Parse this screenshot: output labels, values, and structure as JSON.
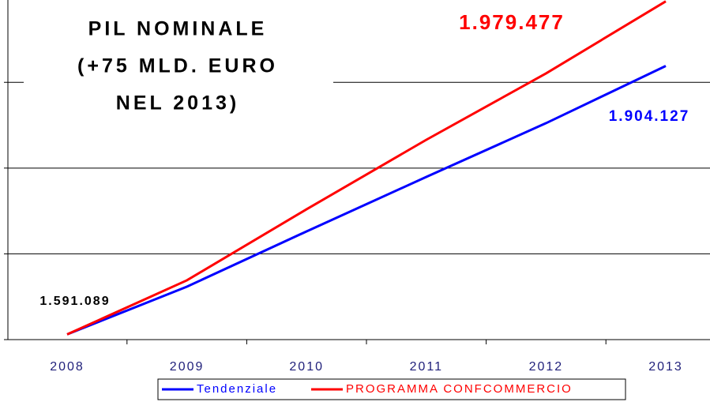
{
  "chart_data": {
    "type": "line",
    "title_lines": [
      "PIL NOMINALE",
      "(+75 MLD. EURO",
      "NEL 2013)"
    ],
    "categories": [
      "2008",
      "2009",
      "2010",
      "2011",
      "2012",
      "2013"
    ],
    "series": [
      {
        "name": "Tendenziale",
        "color": "#0000ff",
        "values": [
          1591089,
          1646700,
          1711200,
          1774700,
          1837400,
          1904127
        ],
        "value_labels": [
          "1.591.089",
          null,
          null,
          null,
          null,
          "1.904.127"
        ],
        "value_label_colors": [
          "#000000",
          null,
          null,
          null,
          null,
          "#0000ff"
        ]
      },
      {
        "name": "PROGRAMMA CONFCOMMERCIO",
        "color": "#ff0000",
        "values": [
          1591089,
          1654100,
          1737000,
          1818000,
          1895400,
          1979477
        ],
        "value_labels": [
          null,
          null,
          null,
          null,
          null,
          "1.979.477"
        ],
        "value_label_colors": [
          null,
          null,
          null,
          null,
          null,
          "#ff0000"
        ]
      }
    ],
    "ylim": [
      1585000,
      1981000
    ],
    "yticks": [
      1585000,
      1685000,
      1785000,
      1885000
    ],
    "grid": true,
    "legend": "bottom"
  }
}
